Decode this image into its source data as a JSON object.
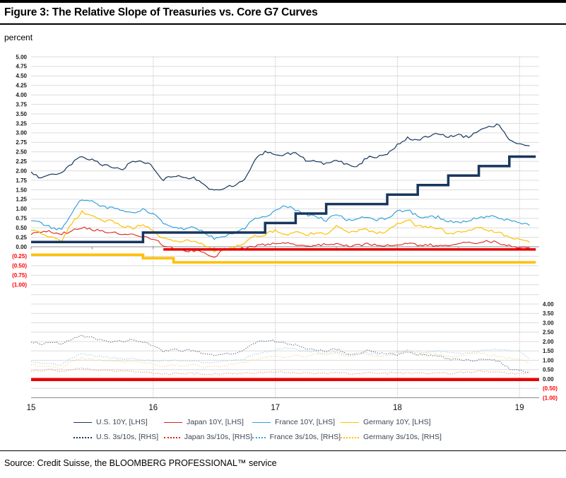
{
  "header": {
    "title": "Figure 3: The Relative Slope of Treasuries vs. Core G7 Curves",
    "unit_label": "percent"
  },
  "source": {
    "text": "Source: Credit Suisse, the BLOOMBERG PROFESSIONAL™ service"
  },
  "chart_data": {
    "type": "line",
    "title": "Figure 3: The Relative Slope of Treasuries vs. Core G7 Curves",
    "ylabel_unit": "percent",
    "x_frequency": "monthly",
    "x_start": "2015-01",
    "x_end": "2019-02",
    "x_tick_labels": [
      "15",
      "16",
      "17",
      "18",
      "19"
    ],
    "grid": true,
    "left_axis": {
      "min": -1.0,
      "max": 5.0,
      "step": 0.25,
      "labels": [
        "5.00",
        "4.75",
        "4.50",
        "4.25",
        "4.00",
        "3.75",
        "3.50",
        "3.25",
        "3.00",
        "2.75",
        "2.50",
        "2.25",
        "2.00",
        "1.75",
        "1.50",
        "1.25",
        "1.00",
        "0.75",
        "0.50",
        "0.25",
        "0.00",
        "(0.25)",
        "(0.50)",
        "(0.75)",
        "(1.00)"
      ]
    },
    "right_axis": {
      "min": -1.0,
      "max": 4.0,
      "step": 0.5,
      "labels": [
        "4.00",
        "3.50",
        "3.00",
        "2.50",
        "2.00",
        "1.50",
        "1.00",
        "0.50",
        "0.00",
        "(0.50)",
        "(1.00)"
      ]
    },
    "negative_label_color": "#ff0000",
    "legend_position": "bottom",
    "legend": [
      {
        "label": "U.S. 10Y, [LHS]",
        "color": "#17365D",
        "style": "solid"
      },
      {
        "label": "Japan 10Y, [LHS]",
        "color": "#DC241F",
        "style": "solid"
      },
      {
        "label": "France 10Y, [LHS]",
        "color": "#36A3DC",
        "style": "solid"
      },
      {
        "label": "Germany 10Y, [LHS]",
        "color": "#FFC000",
        "style": "solid"
      },
      {
        "label": "U.S. 3s/10s, [RHS]",
        "color": "#17365D",
        "style": "dotted"
      },
      {
        "label": "Japan 3s/10s, [RHS]",
        "color": "#DC241F",
        "style": "dotted"
      },
      {
        "label": "France 3s/10s, [RHS]",
        "color": "#36A3DC",
        "style": "dotted"
      },
      {
        "label": "Germany 3s/10s, [RHS]",
        "color": "#FFC000",
        "style": "dotted"
      }
    ],
    "series": [
      {
        "name": "us-3s10s",
        "label": "U.S. 3s/10s, [RHS]",
        "axis": "R",
        "style": "dotted",
        "color": "#5C6880",
        "width": 1.1,
        "values": [
          2.0,
          1.85,
          1.98,
          1.9,
          2.12,
          2.3,
          2.22,
          2.05,
          1.98,
          2.02,
          2.12,
          1.95,
          1.82,
          1.48,
          1.58,
          1.52,
          1.55,
          1.32,
          1.28,
          1.32,
          1.38,
          1.55,
          1.92,
          2.05,
          2.02,
          1.9,
          1.82,
          1.62,
          1.58,
          1.5,
          1.6,
          1.35,
          1.28,
          1.55,
          1.42,
          1.35,
          1.3,
          1.42,
          1.3,
          1.28,
          1.22,
          1.08,
          1.02,
          0.98,
          1.02,
          1.08,
          0.92,
          0.55,
          0.42,
          0.38
        ]
      },
      {
        "name": "japan-3s10s",
        "label": "Japan 3s/10s, [RHS]",
        "axis": "R",
        "style": "dotted",
        "color": "#E89090",
        "width": 1.1,
        "values": [
          0.42,
          0.44,
          0.48,
          0.42,
          0.52,
          0.56,
          0.52,
          0.47,
          0.45,
          0.41,
          0.4,
          0.38,
          0.33,
          0.28,
          0.3,
          0.3,
          0.3,
          0.28,
          0.25,
          0.3,
          0.3,
          0.3,
          0.33,
          0.35,
          0.35,
          0.35,
          0.34,
          0.3,
          0.3,
          0.3,
          0.34,
          0.3,
          0.3,
          0.34,
          0.3,
          0.3,
          0.34,
          0.3,
          0.3,
          0.3,
          0.3,
          0.3,
          0.34,
          0.35,
          0.4,
          0.4,
          0.38,
          0.3,
          0.28,
          0.34
        ]
      },
      {
        "name": "france-3s10s",
        "label": "France 3s/10s, [RHS]",
        "axis": "R",
        "style": "dotted",
        "color": "#9CCEEA",
        "width": 1.1,
        "values": [
          0.9,
          0.85,
          0.8,
          0.75,
          1.15,
          1.35,
          1.28,
          1.18,
          1.12,
          1.08,
          1.08,
          1.05,
          0.95,
          0.95,
          1.0,
          0.96,
          1.0,
          0.88,
          0.9,
          0.95,
          1.0,
          1.1,
          1.3,
          1.45,
          1.52,
          1.7,
          1.58,
          1.48,
          1.45,
          1.35,
          1.45,
          1.3,
          1.35,
          1.42,
          1.3,
          1.35,
          1.45,
          1.52,
          1.4,
          1.45,
          1.5,
          1.4,
          1.35,
          1.4,
          1.5,
          1.55,
          1.6,
          1.52,
          1.48,
          1.05
        ]
      },
      {
        "name": "germany-3s10s",
        "label": "Germany 3s/10s, [RHS]",
        "axis": "R",
        "style": "dotted",
        "color": "#F2D488",
        "width": 1.1,
        "values": [
          0.75,
          0.7,
          0.65,
          0.6,
          0.95,
          1.12,
          1.05,
          0.98,
          0.95,
          0.9,
          0.92,
          0.88,
          0.78,
          0.7,
          0.75,
          0.7,
          0.75,
          0.62,
          0.65,
          0.7,
          0.8,
          0.9,
          1.05,
          1.15,
          1.22,
          1.15,
          1.28,
          1.2,
          1.3,
          1.32,
          1.4,
          1.22,
          1.28,
          1.32,
          1.2,
          1.25,
          1.4,
          1.48,
          1.3,
          1.35,
          1.3,
          1.2,
          1.25,
          1.3,
          1.4,
          1.3,
          1.2,
          1.1,
          1.0,
          0.85
        ]
      },
      {
        "name": "rhs-zero-line",
        "label": "zero line [RHS]",
        "axis": "R",
        "style": "flat",
        "color": "#E60000",
        "width": 4.5,
        "v": -0.03,
        "i0": 0,
        "i1": 49.93
      },
      {
        "name": "japan-10y",
        "label": "Japan 10Y, [LHS]",
        "axis": "L",
        "style": "solid",
        "color": "#DC241F",
        "width": 1.1,
        "values": [
          0.33,
          0.38,
          0.4,
          0.34,
          0.42,
          0.5,
          0.45,
          0.4,
          0.37,
          0.32,
          0.31,
          0.28,
          0.22,
          0.04,
          -0.04,
          -0.1,
          -0.11,
          -0.16,
          -0.26,
          -0.07,
          -0.06,
          -0.05,
          0.02,
          0.06,
          0.07,
          0.08,
          0.07,
          0.02,
          0.05,
          0.06,
          0.08,
          0.03,
          0.04,
          0.07,
          0.04,
          0.05,
          0.08,
          0.07,
          0.05,
          0.05,
          0.04,
          0.04,
          0.1,
          0.11,
          0.12,
          0.14,
          0.1,
          0.02,
          0.0,
          -0.02
        ]
      },
      {
        "name": "germany-10y",
        "label": "Germany 10Y, [LHS]",
        "axis": "L",
        "style": "solid",
        "color": "#FFC000",
        "width": 1.2,
        "values": [
          0.46,
          0.36,
          0.26,
          0.14,
          0.62,
          0.92,
          0.8,
          0.66,
          0.68,
          0.55,
          0.5,
          0.6,
          0.44,
          0.2,
          0.16,
          0.14,
          0.18,
          0.05,
          -0.12,
          -0.06,
          0.0,
          0.1,
          0.3,
          0.32,
          0.44,
          0.3,
          0.42,
          0.3,
          0.38,
          0.3,
          0.56,
          0.4,
          0.42,
          0.46,
          0.34,
          0.42,
          0.6,
          0.72,
          0.54,
          0.52,
          0.5,
          0.34,
          0.4,
          0.42,
          0.5,
          0.44,
          0.36,
          0.26,
          0.18,
          0.12
        ]
      },
      {
        "name": "france-10y",
        "label": "France 10Y, [LHS]",
        "axis": "L",
        "style": "solid",
        "color": "#36A3DC",
        "width": 1.2,
        "values": [
          0.72,
          0.62,
          0.5,
          0.44,
          0.9,
          1.26,
          1.2,
          1.05,
          1.02,
          0.95,
          0.9,
          0.98,
          0.86,
          0.62,
          0.5,
          0.48,
          0.52,
          0.38,
          0.22,
          0.28,
          0.35,
          0.48,
          0.76,
          0.78,
          0.96,
          1.08,
          0.98,
          0.86,
          0.8,
          0.7,
          0.86,
          0.7,
          0.72,
          0.8,
          0.7,
          0.76,
          0.92,
          0.98,
          0.8,
          0.78,
          0.78,
          0.66,
          0.65,
          0.7,
          0.78,
          0.8,
          0.76,
          0.7,
          0.62,
          0.56
        ]
      },
      {
        "name": "us-10y",
        "label": "U.S. 10Y, [LHS]",
        "axis": "L",
        "style": "solid",
        "color": "#17365D",
        "width": 1.2,
        "values": [
          1.95,
          1.8,
          1.95,
          1.92,
          2.2,
          2.38,
          2.3,
          2.15,
          2.1,
          2.05,
          2.25,
          2.25,
          2.1,
          1.75,
          1.88,
          1.8,
          1.82,
          1.62,
          1.48,
          1.55,
          1.62,
          1.8,
          2.3,
          2.5,
          2.45,
          2.42,
          2.5,
          2.28,
          2.25,
          2.18,
          2.3,
          2.18,
          2.08,
          2.35,
          2.38,
          2.42,
          2.68,
          2.86,
          2.82,
          2.92,
          3.0,
          2.88,
          2.95,
          2.88,
          3.05,
          3.16,
          3.22,
          2.83,
          2.7,
          2.66
        ]
      },
      {
        "name": "ecb-deposit-rate-step",
        "label": "ECB deposit rate step [LHS]",
        "axis": "L",
        "style": "step",
        "color": "#FFC000",
        "width": 3.5,
        "steps": [
          [
            0,
            -0.21
          ],
          [
            11,
            -0.3
          ],
          [
            14,
            -0.41
          ]
        ],
        "end": 49.6
      },
      {
        "name": "boj-policy-rate-line",
        "label": "BoJ policy rate [LHS]",
        "axis": "L",
        "style": "step",
        "color": "#E60000",
        "width": 3.5,
        "steps": [
          [
            13,
            -0.07
          ]
        ],
        "end": 49.6
      },
      {
        "name": "fed-funds-rate-step",
        "label": "Fed funds rate step [LHS]",
        "axis": "L",
        "style": "step",
        "color": "#17365D",
        "width": 3.5,
        "steps": [
          [
            0,
            0.125
          ],
          [
            11,
            0.375
          ],
          [
            23,
            0.625
          ],
          [
            26,
            0.875
          ],
          [
            29,
            1.125
          ],
          [
            35,
            1.375
          ],
          [
            38,
            1.625
          ],
          [
            41,
            1.875
          ],
          [
            44,
            2.125
          ],
          [
            47,
            2.375
          ]
        ],
        "end": 49.6
      }
    ],
    "colors": {
      "grid": "#DCDCDC",
      "axis": "#8C8C8C",
      "year_gridline": "#A6A6A6",
      "navy": "#17365D",
      "red": "#DC241F",
      "blue": "#36A3DC",
      "gold": "#FFC000"
    }
  }
}
